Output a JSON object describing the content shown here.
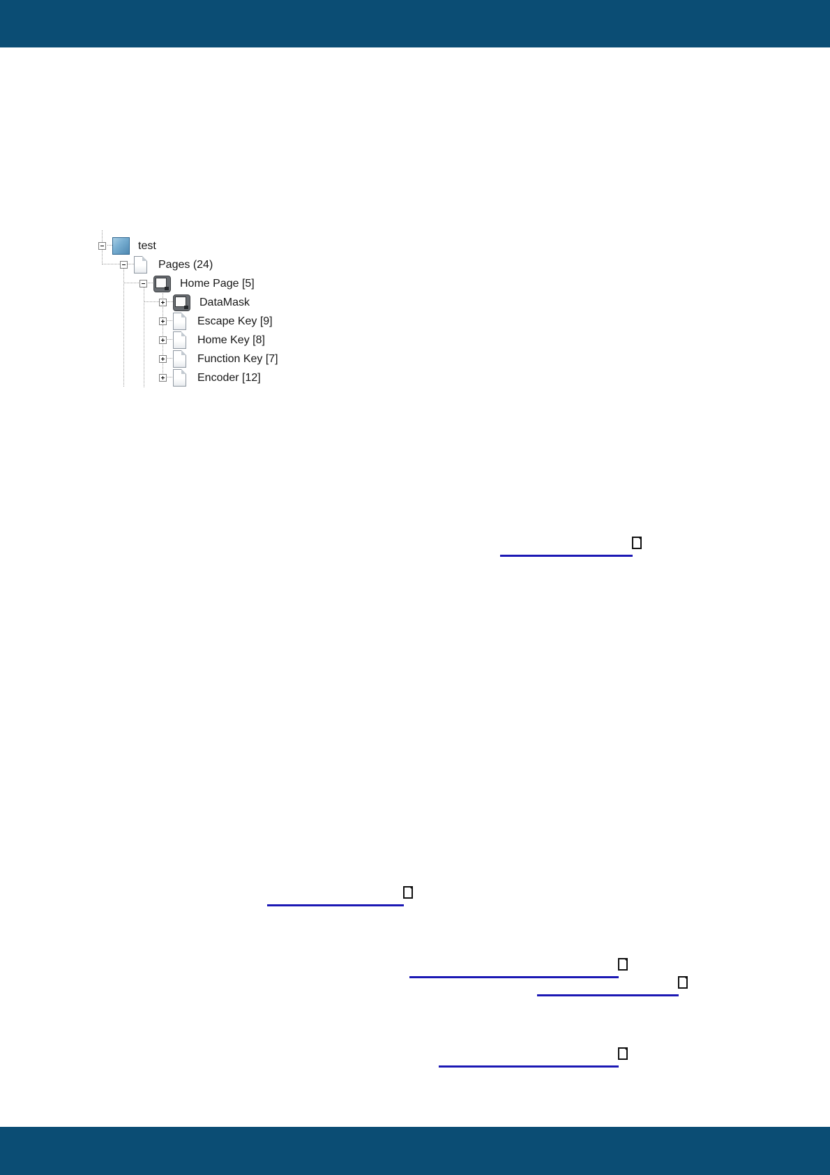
{
  "colors": {
    "band_blue": "#0b4d74",
    "link_blue": "#1b18b4",
    "tree_line_gray": "#9b9b9b",
    "tree_text": "#161616"
  },
  "tree": {
    "items": [
      {
        "label": "test",
        "icon": "project-icon",
        "state": "expanded"
      },
      {
        "label": "Pages (24)",
        "icon": "page-icon",
        "state": "expanded"
      },
      {
        "label": "Home Page [5]",
        "icon": "screen-icon",
        "state": "expanded"
      },
      {
        "label": "DataMask",
        "icon": "screen-icon",
        "state": "collapsed"
      },
      {
        "label": "Escape Key [9]",
        "icon": "page-icon",
        "state": "collapsed"
      },
      {
        "label": "Home Key [8]",
        "icon": "page-icon",
        "state": "collapsed"
      },
      {
        "label": "Function Key [7]",
        "icon": "page-icon",
        "state": "collapsed"
      },
      {
        "label": "Encoder [12]",
        "icon": "page-icon",
        "state": "collapsed"
      }
    ]
  },
  "links": {
    "items": [
      {
        "text": ""
      },
      {
        "text": ""
      },
      {
        "text": ""
      },
      {
        "text": ""
      },
      {
        "text": ""
      }
    ]
  }
}
